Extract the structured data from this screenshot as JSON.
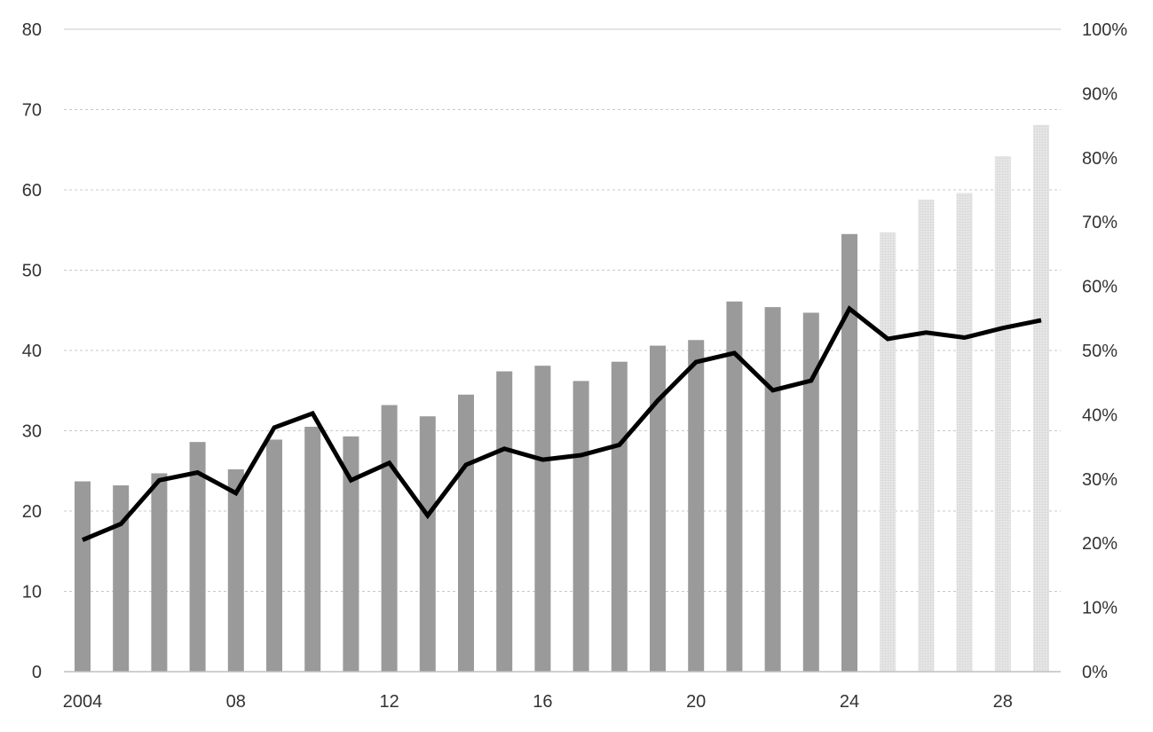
{
  "chart_data": {
    "type": "bar",
    "years": [
      2004,
      2005,
      2006,
      2007,
      2008,
      2009,
      2010,
      2011,
      2012,
      2013,
      2014,
      2015,
      2016,
      2017,
      2018,
      2019,
      2020,
      2021,
      2022,
      2023,
      2024,
      2025,
      2026,
      2027,
      2028,
      2029
    ],
    "x_tick_labels": [
      {
        "year": 2004,
        "label": "2004"
      },
      {
        "year": 2008,
        "label": "08"
      },
      {
        "year": 2012,
        "label": "12"
      },
      {
        "year": 2016,
        "label": "16"
      },
      {
        "year": 2020,
        "label": "20"
      },
      {
        "year": 2024,
        "label": "24"
      },
      {
        "year": 2028,
        "label": "28"
      }
    ],
    "series": [
      {
        "kind": "bar",
        "axis": "left",
        "values": [
          23.7,
          23.2,
          24.7,
          28.6,
          25.2,
          28.9,
          30.5,
          29.3,
          33.2,
          31.8,
          34.5,
          37.4,
          38.1,
          36.2,
          38.6,
          40.6,
          41.3,
          46.1,
          45.4,
          44.7,
          54.5,
          54.7,
          58.8,
          59.6,
          64.2,
          68.1
        ],
        "color": "#9a9a9a",
        "projected_color": "#e6e6e6",
        "first_projected_year": 2025
      },
      {
        "kind": "line",
        "axis": "right",
        "values": [
          0.205,
          0.23,
          0.298,
          0.31,
          0.278,
          0.38,
          0.402,
          0.298,
          0.325,
          0.243,
          0.322,
          0.347,
          0.33,
          0.337,
          0.353,
          0.422,
          0.482,
          0.496,
          0.438,
          0.453,
          0.565,
          0.518,
          0.528,
          0.52,
          0.535,
          0.547
        ],
        "color": "#000000"
      }
    ],
    "y_left": {
      "min": 0,
      "max": 80,
      "ticks": [
        "0",
        "10",
        "20",
        "30",
        "40",
        "50",
        "60",
        "70",
        "80"
      ]
    },
    "y_right": {
      "min": 0,
      "max": 1,
      "ticks": [
        "0%",
        "10%",
        "20%",
        "30%",
        "40%",
        "50%",
        "60%",
        "70%",
        "80%",
        "90%",
        "100%"
      ]
    },
    "grid": true,
    "legend": "none"
  }
}
